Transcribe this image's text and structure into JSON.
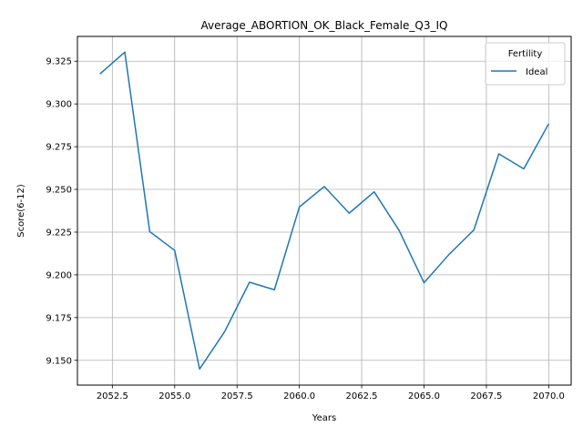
{
  "chart_data": {
    "type": "line",
    "title": "Average_ABORTION_OK_Black_Female_Q3_IQ",
    "xlabel": "Years",
    "ylabel": "Score(6-12)",
    "xlim": [
      2051.1,
      2070.9
    ],
    "ylim": [
      9.1355,
      9.3395
    ],
    "x_ticks": [
      2052.5,
      2055.0,
      2057.5,
      2060.0,
      2062.5,
      2065.0,
      2067.5,
      2070.0
    ],
    "x_tick_labels": [
      "2052.5",
      "2055.0",
      "2057.5",
      "2060.0",
      "2062.5",
      "2065.0",
      "2067.5",
      "2070.0"
    ],
    "y_ticks": [
      9.15,
      9.175,
      9.2,
      9.225,
      9.25,
      9.275,
      9.3,
      9.325
    ],
    "y_tick_labels": [
      "9.150",
      "9.175",
      "9.200",
      "9.225",
      "9.250",
      "9.275",
      "9.300",
      "9.325"
    ],
    "grid": true,
    "legend": {
      "title": "Fertility",
      "placement": "top-right"
    },
    "series": [
      {
        "name": "Ideal",
        "color": "#1f77b4",
        "x": [
          2052,
          2053,
          2054,
          2055,
          2056,
          2057,
          2058,
          2059,
          2060,
          2061,
          2062,
          2063,
          2064,
          2065,
          2066,
          2067,
          2068,
          2069,
          2070
        ],
        "y": [
          9.3175,
          9.3303,
          9.2253,
          9.2143,
          9.1449,
          9.1667,
          9.1957,
          9.1913,
          9.2397,
          9.2517,
          9.2361,
          9.2486,
          9.226,
          9.1954,
          9.2119,
          9.2263,
          9.2708,
          9.262,
          9.2884
        ]
      }
    ]
  }
}
